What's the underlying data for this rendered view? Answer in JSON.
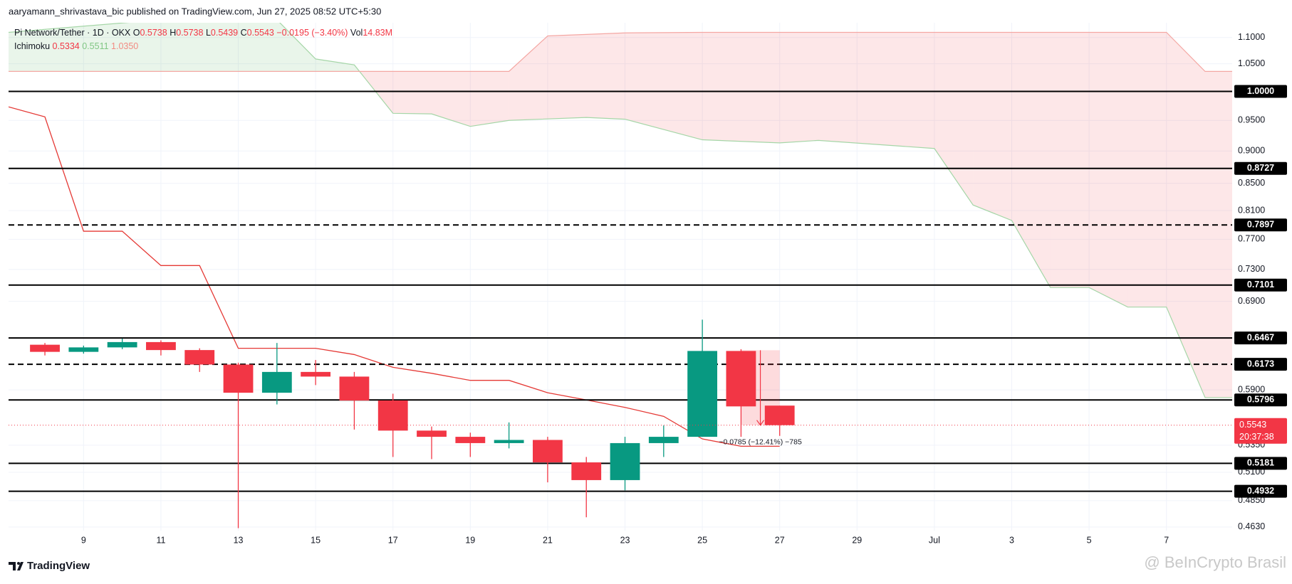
{
  "header": {
    "published": "aaryamann_shrivastava_bic published on TradingView.com, Jun 27, 2025 08:52 UTC+5:30",
    "symbol": "Pi Network/Tether · 1D · OKX",
    "ohlc": [
      [
        "O",
        "0.5738"
      ],
      [
        "H",
        "0.5738"
      ],
      [
        "L",
        "0.5439"
      ],
      [
        "C",
        "0.5543"
      ]
    ],
    "change": "−0.0195 (−3.40%)",
    "volume": [
      "Vol",
      "14.83M"
    ]
  },
  "footer": {
    "brand": "TradingView",
    "watermark": "@ BeInCrypto Brasil"
  },
  "chart_data": {
    "type": "candlestick",
    "x": [
      0,
      1,
      2,
      3,
      4,
      5,
      6,
      7,
      8,
      9,
      10,
      11,
      12,
      13,
      14,
      15,
      16,
      17,
      18,
      19
    ],
    "open": [
      0.639,
      0.631,
      0.636,
      0.642,
      0.633,
      0.617,
      0.587,
      0.609,
      0.604,
      0.579,
      0.549,
      0.543,
      0.537,
      0.54,
      0.519,
      0.503,
      0.537,
      0.543,
      0.632,
      0.5738
    ],
    "high": [
      0.641,
      0.638,
      0.646,
      0.644,
      0.635,
      0.619,
      0.641,
      0.622,
      0.609,
      0.586,
      0.553,
      0.547,
      0.557,
      0.543,
      0.524,
      0.543,
      0.554,
      0.668,
      0.634,
      0.5738
    ],
    "low": [
      0.627,
      0.629,
      0.634,
      0.627,
      0.609,
      0.462,
      0.575,
      0.595,
      0.55,
      0.524,
      0.522,
      0.524,
      0.532,
      0.501,
      0.471,
      0.494,
      0.524,
      0.543,
      0.543,
      0.5439
    ],
    "close": [
      0.631,
      0.636,
      0.642,
      0.633,
      0.617,
      0.587,
      0.609,
      0.604,
      0.579,
      0.549,
      0.543,
      0.537,
      0.54,
      0.519,
      0.503,
      0.537,
      0.543,
      0.632,
      0.573,
      0.5543
    ],
    "up_color": "#089981",
    "down_color": "#f23645",
    "log_scale": true,
    "grid": true,
    "ylim": [
      0.46,
      1.129
    ],
    "yticks": [
      {
        "value": 1.1,
        "label": "1.1000"
      },
      {
        "value": 1.05,
        "label": "1.0500"
      },
      {
        "value": 0.95,
        "label": "0.9500"
      },
      {
        "value": 0.9,
        "label": "0.9000"
      },
      {
        "value": 0.85,
        "label": "0.8500"
      },
      {
        "value": 0.81,
        "label": "0.8100"
      },
      {
        "value": 0.77,
        "label": "0.7700"
      },
      {
        "value": 0.73,
        "label": "0.7300"
      },
      {
        "value": 0.69,
        "label": "0.6900"
      },
      {
        "value": 0.59,
        "label": "0.5900"
      },
      {
        "value": 0.535,
        "label": "0.5350"
      },
      {
        "value": 0.51,
        "label": "0.5100"
      },
      {
        "value": 0.485,
        "label": "0.4850"
      },
      {
        "value": 0.463,
        "label": "0.4630"
      }
    ],
    "xlim": [
      -0.94,
      30.7
    ],
    "xticks": [
      {
        "value": 1,
        "label": "9"
      },
      {
        "value": 3,
        "label": "11"
      },
      {
        "value": 5,
        "label": "13"
      },
      {
        "value": 7,
        "label": "15"
      },
      {
        "value": 9,
        "label": "17"
      },
      {
        "value": 11,
        "label": "19"
      },
      {
        "value": 13,
        "label": "21"
      },
      {
        "value": 15,
        "label": "23"
      },
      {
        "value": 17,
        "label": "25"
      },
      {
        "value": 19,
        "label": "27"
      },
      {
        "value": 21,
        "label": "29"
      },
      {
        "value": 23,
        "label": "Jul"
      },
      {
        "value": 25,
        "label": "3"
      },
      {
        "value": 27,
        "label": "5"
      },
      {
        "value": 29,
        "label": "7"
      }
    ],
    "levels": [
      {
        "value": 1,
        "label": "1.0000",
        "dashed": false
      },
      {
        "value": 0.8727,
        "label": "0.8727",
        "dashed": false
      },
      {
        "value": 0.7897,
        "label": "0.7897",
        "dashed": true
      },
      {
        "value": 0.7101,
        "label": "0.7101",
        "dashed": false
      },
      {
        "value": 0.6467,
        "label": "0.6467",
        "dashed": false
      },
      {
        "value": 0.6173,
        "label": "0.6173",
        "dashed": true
      },
      {
        "value": 0.5796,
        "label": "0.5796",
        "dashed": false
      },
      {
        "value": 0.5181,
        "label": "0.5181",
        "dashed": false
      },
      {
        "value": 0.4932,
        "label": "0.4932",
        "dashed": false
      }
    ],
    "price_line": {
      "value": 0.5543,
      "label": "0.5543",
      "countdown": "20:37:38",
      "color": "#f23645"
    },
    "ichimoku": {
      "label": "Ichimoku",
      "legend": [
        {
          "value": 0.5334,
          "color": "#f23645"
        },
        {
          "value": 0.5511,
          "color": "#81c784"
        },
        {
          "value": 1.035,
          "label": "1.0350",
          "color": "#f28b82"
        }
      ],
      "conversion": {
        "color": "#e53935",
        "x": [
          -0.94,
          0,
          1,
          2,
          3,
          4,
          5,
          6,
          7,
          8,
          9,
          10,
          11,
          12,
          13,
          14,
          15,
          16,
          17,
          18,
          19
        ],
        "values": [
          0.973,
          0.956,
          0.781,
          0.781,
          0.735,
          0.735,
          0.635,
          0.635,
          0.635,
          0.628,
          0.614,
          0.6075,
          0.6,
          0.6,
          0.587,
          0.5796,
          0.572,
          0.563,
          0.541,
          0.534,
          0.534
        ]
      },
      "span_a": {
        "color": "#a5d6a7",
        "x": [
          -0.94,
          3,
          6,
          7,
          8,
          9,
          10,
          11,
          12,
          14,
          15,
          17,
          19,
          20,
          23,
          24,
          25,
          26,
          27,
          28,
          29,
          30,
          30.7
        ],
        "values": [
          1.11,
          1.135,
          1.135,
          1.059,
          1.048,
          0.962,
          0.961,
          0.94,
          0.95,
          0.955,
          0.952,
          0.918,
          0.913,
          0.917,
          0.904,
          0.818,
          0.796,
          0.707,
          0.707,
          0.683,
          0.683,
          0.582,
          0.582
        ]
      },
      "span_b": {
        "color": "#f4a7a3",
        "x": [
          -0.94,
          12,
          13,
          15,
          17,
          29,
          30,
          30.7
        ],
        "values": [
          1.036,
          1.036,
          1.103,
          1.109,
          1.11,
          1.11,
          1.036,
          1.036
        ]
      },
      "up_fill": "rgba(76,175,80,0.12)",
      "down_fill": "rgba(242,54,69,0.12)"
    },
    "measure": {
      "x": [
        18,
        19
      ],
      "from": 0.6328,
      "to": 0.5543,
      "label": "−0.0785 (−12.41%) −785",
      "color": "#f23645"
    }
  }
}
